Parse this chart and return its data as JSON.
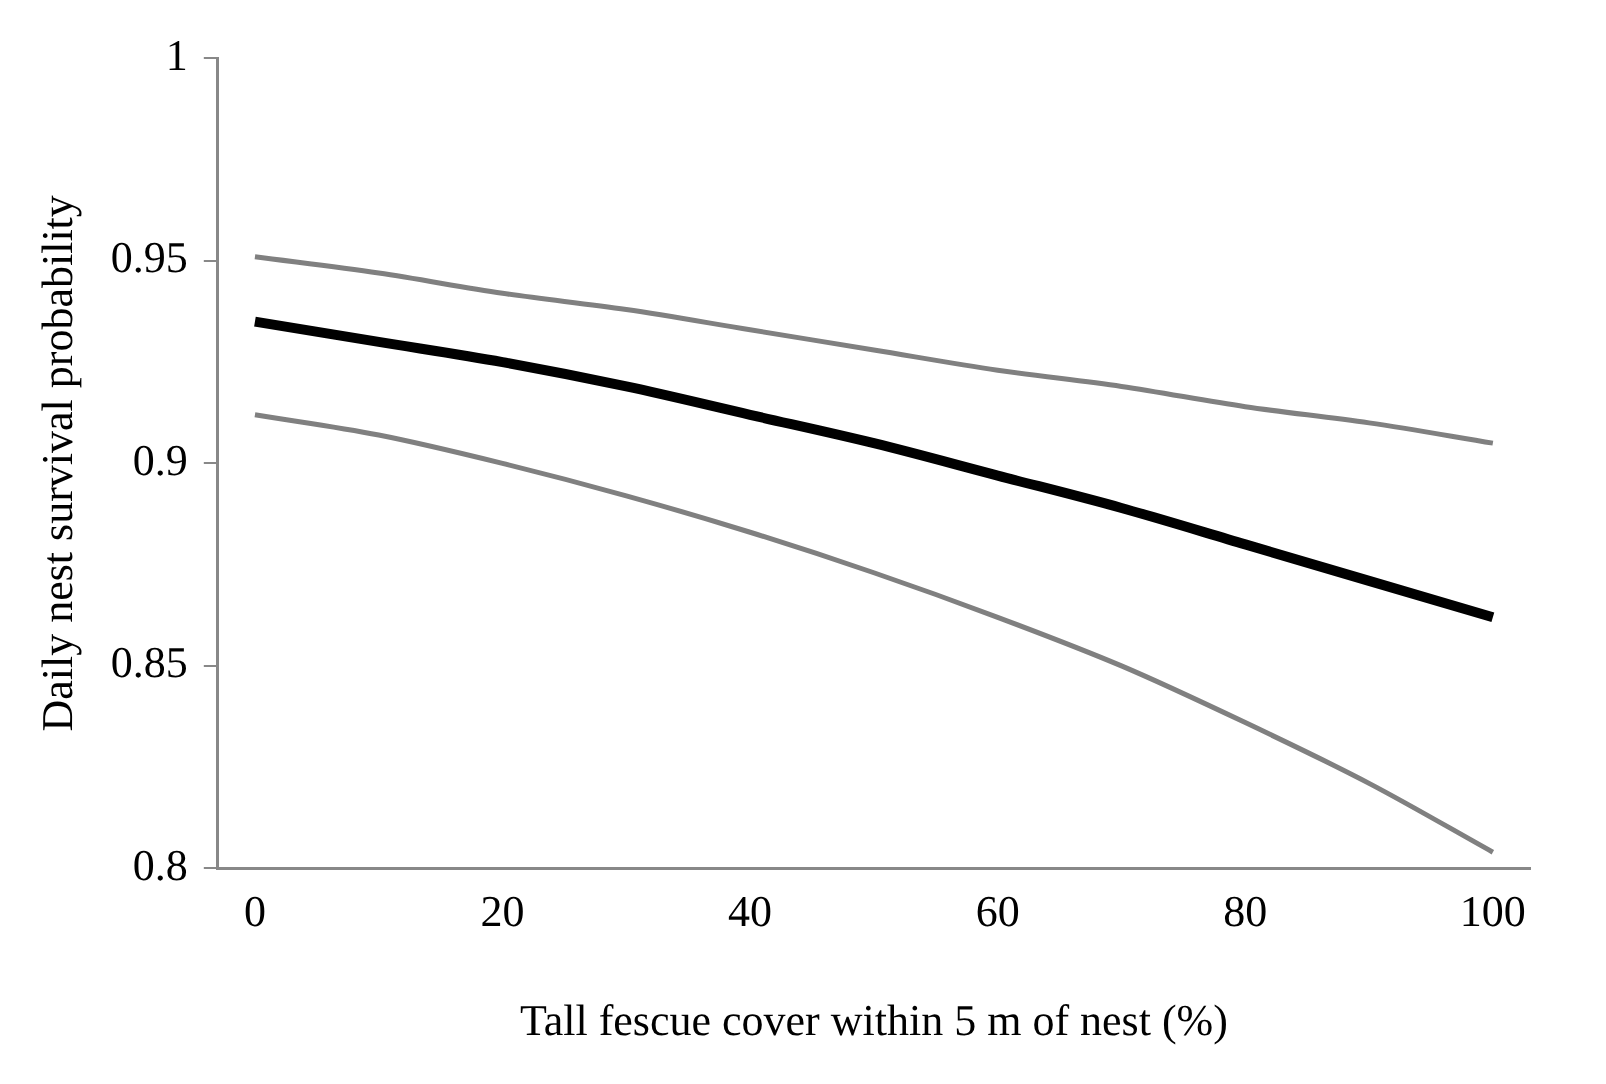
{
  "chart_data": {
    "type": "line",
    "xlabel": "Tall fescue cover within 5 m of nest (%)",
    "ylabel": "Daily nest survival probability",
    "x": [
      0,
      10,
      20,
      30,
      40,
      50,
      60,
      70,
      80,
      90,
      100
    ],
    "series": [
      {
        "color": "#000000",
        "values": [
          0.935,
          0.93,
          0.925,
          0.919,
          0.912,
          0.905,
          0.897,
          0.889,
          0.88,
          0.871,
          0.862
        ]
      },
      {
        "color": "#808080",
        "values": [
          0.951,
          0.947,
          0.942,
          0.938,
          0.933,
          0.928,
          0.923,
          0.919,
          0.914,
          0.91,
          0.905
        ]
      },
      {
        "color": "#808080",
        "values": [
          0.912,
          0.907,
          0.9,
          0.892,
          0.883,
          0.873,
          0.862,
          0.85,
          0.836,
          0.821,
          0.804
        ]
      }
    ],
    "xlim": [
      -3,
      103
    ],
    "xticks": [
      0,
      20,
      40,
      60,
      80,
      100
    ],
    "ylim": [
      0.8,
      1
    ],
    "yticks": [
      {
        "value": 0.8,
        "label": "0.8"
      },
      {
        "value": 0.85,
        "label": "0.85"
      },
      {
        "value": 0.9,
        "label": "0.9"
      },
      {
        "value": 0.95,
        "label": "0.95"
      },
      {
        "value": 1,
        "label": "1"
      }
    ],
    "grid": false,
    "legend": false,
    "marker": "none",
    "line_style": "solid"
  }
}
